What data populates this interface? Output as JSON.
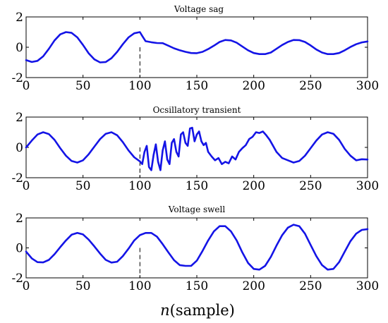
{
  "figure": {
    "xlabel_var": "n",
    "xlabel_unit": "(sample)"
  },
  "chart_data": [
    {
      "type": "line",
      "title": "Voltage sag",
      "xlim": [
        0,
        300
      ],
      "ylim": [
        -2,
        2
      ],
      "x_ticks": [
        0,
        50,
        100,
        150,
        200,
        250,
        300
      ],
      "y_ticks": [
        2,
        0,
        -2
      ],
      "event_marker_x": 100,
      "grid": false,
      "series": [
        {
          "color": "#1414e6",
          "x": [
            0,
            5,
            10,
            15,
            20,
            25,
            30,
            35,
            40,
            45,
            50,
            55,
            60,
            65,
            70,
            75,
            80,
            85,
            90,
            95,
            100,
            102,
            105,
            110,
            115,
            120,
            125,
            130,
            135,
            140,
            145,
            150,
            155,
            160,
            165,
            170,
            175,
            180,
            185,
            190,
            195,
            200,
            205,
            210,
            215,
            220,
            225,
            230,
            235,
            240,
            245,
            250,
            255,
            260,
            265,
            270,
            275,
            280,
            285,
            290,
            295,
            300
          ],
          "y": [
            -0.85,
            -0.97,
            -0.9,
            -0.6,
            -0.1,
            0.45,
            0.85,
            1.0,
            0.95,
            0.65,
            0.15,
            -0.4,
            -0.8,
            -1.0,
            -0.97,
            -0.72,
            -0.3,
            0.2,
            0.65,
            0.92,
            1.0,
            0.75,
            0.4,
            0.33,
            0.28,
            0.27,
            0.1,
            -0.07,
            -0.2,
            -0.3,
            -0.38,
            -0.39,
            -0.3,
            -0.12,
            0.1,
            0.35,
            0.48,
            0.45,
            0.3,
            0.05,
            -0.2,
            -0.38,
            -0.45,
            -0.45,
            -0.35,
            -0.1,
            0.15,
            0.35,
            0.48,
            0.47,
            0.35,
            0.12,
            -0.15,
            -0.35,
            -0.45,
            -0.45,
            -0.38,
            -0.2,
            0.02,
            0.2,
            0.32,
            0.38
          ]
        }
      ]
    },
    {
      "type": "line",
      "title": "Ocsillatory transient",
      "xlim": [
        0,
        300
      ],
      "ylim": [
        -2,
        2
      ],
      "x_ticks": [
        0,
        50,
        100,
        150,
        200,
        250,
        300
      ],
      "y_ticks": [
        2,
        0,
        -2
      ],
      "event_marker_x": 100,
      "grid": false,
      "series": [
        {
          "color": "#1414e6",
          "x": [
            0,
            5,
            10,
            15,
            20,
            25,
            30,
            35,
            40,
            45,
            50,
            55,
            60,
            65,
            70,
            75,
            80,
            85,
            90,
            95,
            100,
            102,
            104,
            106,
            108,
            110,
            112,
            114,
            116,
            118,
            120,
            122,
            124,
            126,
            128,
            130,
            132,
            134,
            136,
            138,
            140,
            142,
            144,
            146,
            148,
            150,
            152,
            154,
            156,
            158,
            160,
            163,
            166,
            169,
            172,
            175,
            178,
            181,
            184,
            187,
            190,
            193,
            196,
            199,
            202,
            205,
            208,
            211,
            214,
            217,
            220,
            225,
            230,
            235,
            240,
            245,
            250,
            255,
            260,
            265,
            270,
            275,
            280,
            285,
            290,
            295,
            300
          ],
          "y": [
            0.0,
            0.45,
            0.85,
            1.0,
            0.88,
            0.5,
            -0.05,
            -0.55,
            -0.9,
            -1.0,
            -0.85,
            -0.45,
            0.05,
            0.55,
            0.9,
            1.0,
            0.8,
            0.35,
            -0.2,
            -0.65,
            -0.92,
            -1.1,
            -0.3,
            0.1,
            -1.3,
            -1.5,
            -0.5,
            0.2,
            -0.95,
            -1.5,
            -0.2,
            0.4,
            -0.8,
            -1.1,
            0.3,
            0.55,
            -0.3,
            -0.6,
            0.85,
            1.0,
            0.3,
            0.1,
            1.25,
            1.3,
            0.4,
            0.85,
            1.05,
            0.4,
            0.15,
            0.3,
            -0.3,
            -0.6,
            -0.85,
            -0.7,
            -1.1,
            -0.95,
            -1.05,
            -0.6,
            -0.8,
            -0.3,
            -0.05,
            0.15,
            0.55,
            0.7,
            1.0,
            0.95,
            1.05,
            0.8,
            0.5,
            0.1,
            -0.3,
            -0.7,
            -0.85,
            -1.0,
            -0.9,
            -0.55,
            -0.05,
            0.45,
            0.85,
            1.0,
            0.9,
            0.5,
            -0.1,
            -0.55,
            -0.85,
            -0.78,
            -0.8
          ]
        }
      ]
    },
    {
      "type": "line",
      "title": "Voltage swell",
      "xlim": [
        0,
        300
      ],
      "ylim": [
        -2,
        2
      ],
      "x_ticks": [
        0,
        50,
        100,
        150,
        200,
        250,
        300
      ],
      "y_ticks": [
        2,
        0,
        -2
      ],
      "event_marker_x": 100,
      "grid": false,
      "series": [
        {
          "color": "#1414e6",
          "x": [
            0,
            5,
            10,
            15,
            20,
            25,
            30,
            35,
            40,
            45,
            50,
            55,
            60,
            65,
            70,
            75,
            80,
            85,
            90,
            95,
            100,
            105,
            110,
            115,
            120,
            125,
            130,
            135,
            140,
            145,
            150,
            155,
            160,
            165,
            170,
            175,
            180,
            185,
            190,
            195,
            200,
            205,
            210,
            215,
            220,
            225,
            230,
            235,
            240,
            245,
            250,
            255,
            260,
            265,
            270,
            275,
            280,
            285,
            290,
            295,
            300
          ],
          "y": [
            -0.25,
            -0.7,
            -0.95,
            -0.97,
            -0.8,
            -0.42,
            0.05,
            0.5,
            0.88,
            1.0,
            0.9,
            0.55,
            0.1,
            -0.38,
            -0.8,
            -0.98,
            -0.92,
            -0.55,
            -0.05,
            0.5,
            0.85,
            1.0,
            1.0,
            0.75,
            0.25,
            -0.3,
            -0.82,
            -1.15,
            -1.2,
            -1.2,
            -0.85,
            -0.2,
            0.5,
            1.1,
            1.45,
            1.45,
            1.1,
            0.5,
            -0.3,
            -1.0,
            -1.4,
            -1.45,
            -1.2,
            -0.6,
            0.15,
            0.85,
            1.35,
            1.55,
            1.45,
            0.95,
            0.2,
            -0.55,
            -1.15,
            -1.45,
            -1.4,
            -0.95,
            -0.25,
            0.45,
            0.95,
            1.2,
            1.25
          ]
        }
      ]
    }
  ]
}
